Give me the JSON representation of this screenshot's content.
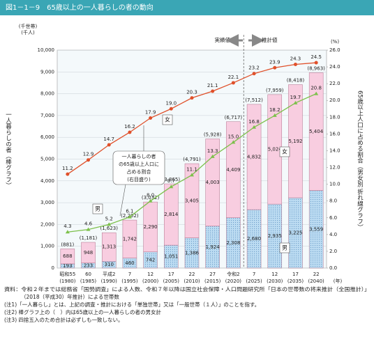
{
  "chart_data": {
    "type": "stacked-bar-line",
    "title": "図1－1－9　65歳以上の一人暮らしの者の動向",
    "y_unit_labels": [
      "(千世帯)",
      "(千人)"
    ],
    "y_label": "一人暮らしの者（棒グラフ）",
    "y2_unit_label": "(%)",
    "y2_label": "65歳以上人口に占める割合（男女別 折れ線グラフ）",
    "x_unit_label": "(年)",
    "period_labels": [
      "実績値",
      "推計値"
    ],
    "annotation": [
      "一人暮らしの者",
      "の65歳以上人口に",
      "占める割合",
      "(右目盛り)"
    ],
    "categories": [
      "昭和55",
      "60",
      "平成2",
      "7",
      "12",
      "17",
      "22",
      "27",
      "令和2",
      "7",
      "12",
      "17",
      "22"
    ],
    "category_years": [
      "(1980)",
      "(1985)",
      "(1990)",
      "(1995)",
      "(2000)",
      "(2005)",
      "(2010)",
      "(2015)",
      "(2020)",
      "(2025)",
      "(2030)",
      "(2035)",
      "(2040)"
    ],
    "series": [
      {
        "name": "男",
        "color": "#bcdcf2",
        "values": [
          193,
          233,
          310,
          460,
          742,
          1051,
          1386,
          1924,
          2308,
          2680,
          2935,
          3225,
          3559
        ],
        "value_labels": [
          "193",
          "233",
          "310",
          "460",
          "742",
          "1,051",
          "1,386",
          "1,924",
          "2,308",
          "2,680",
          "2,935",
          "3,225",
          "3,559"
        ]
      },
      {
        "name": "女",
        "color": "#f8cde0",
        "values": [
          688,
          948,
          1313,
          1742,
          2290,
          2814,
          3405,
          4003,
          4409,
          4832,
          5024,
          5192,
          5404
        ],
        "value_labels": [
          "688",
          "948",
          "1,313",
          "1,742",
          "2,290",
          "2,814",
          "3,405",
          "4,003",
          "4,409",
          "4,832",
          "5,024",
          "5,192",
          "5,404"
        ]
      }
    ],
    "totals": {
      "values": [
        881,
        1181,
        1623,
        2202,
        3032,
        3865,
        4791,
        5928,
        6717,
        7512,
        7959,
        8418,
        8963
      ],
      "value_labels": [
        "(881)",
        "(1,181)",
        "(1,623)",
        "(2,202)",
        "(3,032)",
        "(3,865)",
        "(4,791)",
        "(5,928)",
        "(6,717)",
        "(7,512)",
        "(7,959)",
        "(8,418)",
        "(8,963)"
      ]
    },
    "line_series": [
      {
        "name": "男",
        "color": "#7cc04a",
        "axis": "y2",
        "values": [
          4.3,
          4.6,
          5.2,
          6.1,
          8.0,
          9.7,
          11.1,
          13.3,
          15.0,
          16.8,
          18.2,
          19.7,
          20.8
        ],
        "value_labels": [
          "4.3",
          "4.6",
          "5.2",
          "6.1",
          "8.0",
          "9.7",
          "11.1",
          "13.3",
          "15.0",
          "16.8",
          "18.2",
          "19.7",
          "20.8"
        ]
      },
      {
        "name": "女",
        "color": "#e0502a",
        "axis": "y2",
        "values": [
          11.2,
          12.9,
          14.7,
          16.2,
          17.9,
          19.0,
          20.3,
          21.1,
          22.1,
          23.2,
          23.9,
          24.3,
          24.5
        ],
        "value_labels": [
          "11.2",
          "12.9",
          "14.7",
          "16.2",
          "17.9",
          "19.0",
          "20.3",
          "21.1",
          "22.1",
          "23.2",
          "23.9",
          "24.3",
          "24.5"
        ]
      }
    ],
    "ylim": [
      0,
      10000
    ],
    "yticks": [
      0,
      {
        "value": 1000,
        "label": "1,000"
      },
      {
        "value": 2000,
        "label": "2,000"
      },
      {
        "value": 3000,
        "label": "3,000"
      },
      {
        "value": 4000,
        "label": "4,000"
      },
      {
        "value": 5000,
        "label": "5,000"
      },
      {
        "value": 6000,
        "label": "6,000"
      },
      {
        "value": 7000,
        "label": "7,000"
      },
      {
        "value": 8000,
        "label": "8,000"
      },
      {
        "value": 9000,
        "label": "9,000"
      },
      {
        "value": 10000,
        "label": "10,000"
      }
    ],
    "y2lim": [
      0,
      26
    ],
    "y2ticks": [
      {
        "value": 0,
        "label": "0.0"
      },
      {
        "value": 2,
        "label": "2.0"
      },
      {
        "value": 4,
        "label": "4.0"
      },
      {
        "value": 6,
        "label": "6.0"
      },
      {
        "value": 8,
        "label": "8.0"
      },
      {
        "value": 10,
        "label": "10.0"
      },
      {
        "value": 12,
        "label": "12.0"
      },
      {
        "value": 14,
        "label": "14.0"
      },
      {
        "value": 16,
        "label": "16.0"
      },
      {
        "value": 18,
        "label": "18.0"
      },
      {
        "value": 20,
        "label": "20.0"
      },
      {
        "value": 22,
        "label": "22.0"
      },
      {
        "value": 24,
        "label": "24.0"
      },
      {
        "value": 26,
        "label": "26.0"
      }
    ],
    "grid": true,
    "notes": [
      "資料：令和２年までは総務省「国勢調査」による人数、令和７年以降は国立社会保障・人口問題研究所「日本の世帯数の将来推計（全国推計）」",
      "（2018（平成30）年推計）による世帯数",
      "(注1)「一人暮らし」とは、上記の調査・推計における「単独世帯」又は「一般世帯（１人）」のことを指す。",
      "(注2) 棒グラフ上の（　）内は65歳以上の一人暮らしの者の男女計",
      "(注3) 四捨五入のため合計は必ずしも一致しない。"
    ]
  }
}
